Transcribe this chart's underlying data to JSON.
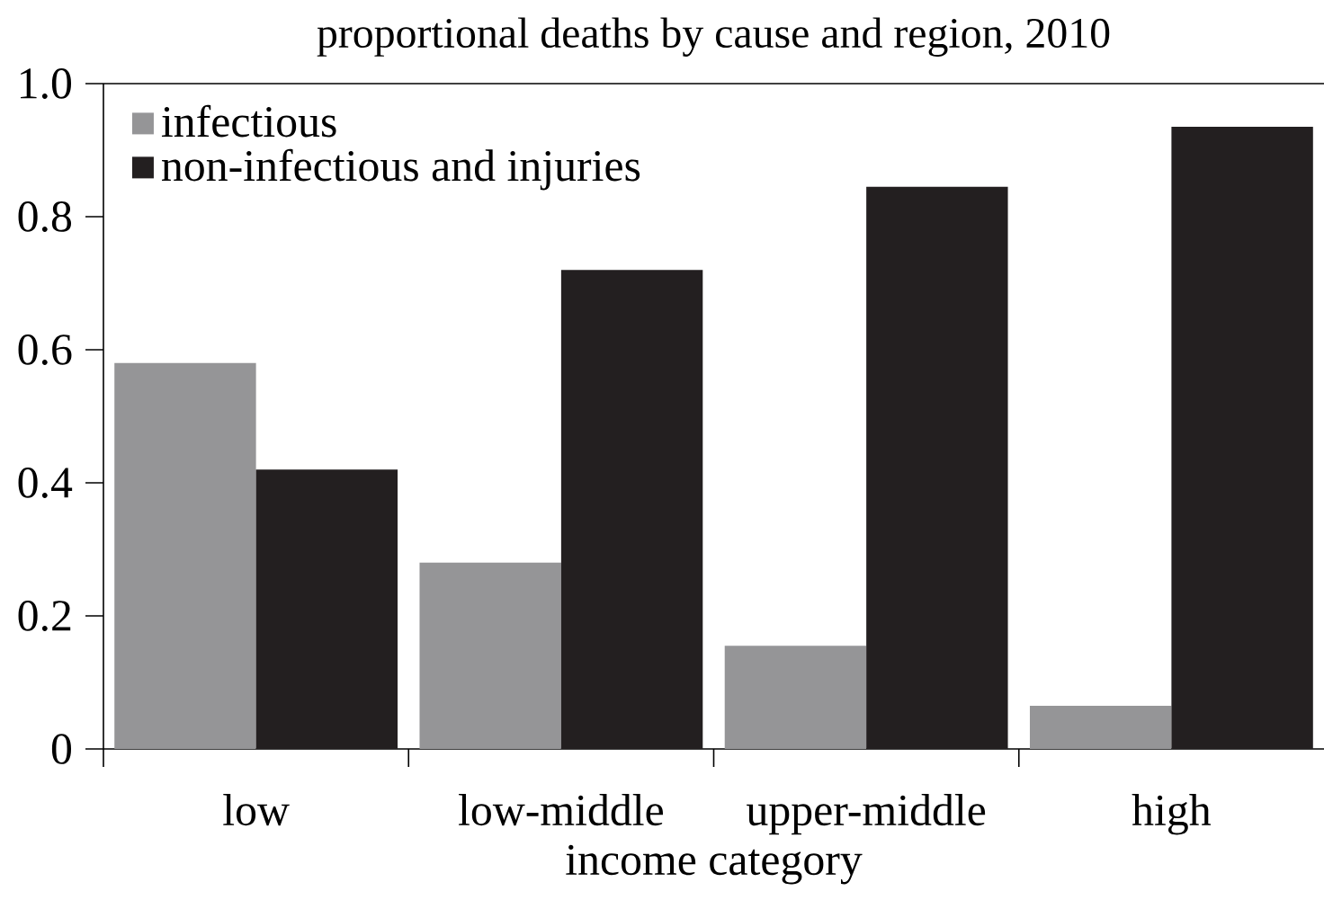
{
  "chart_data": {
    "type": "bar",
    "title": "proportional deaths by cause and region, 2010",
    "xlabel": "income category",
    "categories": [
      "low",
      "low-middle",
      "upper-middle",
      "high"
    ],
    "series": [
      {
        "name": "infectious",
        "color": "#959597",
        "values": [
          0.58,
          0.28,
          0.155,
          0.065
        ]
      },
      {
        "name": "non-infectious and injuries",
        "color": "#231f20",
        "values": [
          0.42,
          0.72,
          0.845,
          0.935
        ]
      }
    ],
    "ylim": [
      0,
      1
    ],
    "yticks": [
      0,
      0.2,
      0.4,
      0.6,
      0.8,
      {
        "value": 1,
        "label": "1.0"
      }
    ],
    "legend": "top left",
    "grid": false
  }
}
